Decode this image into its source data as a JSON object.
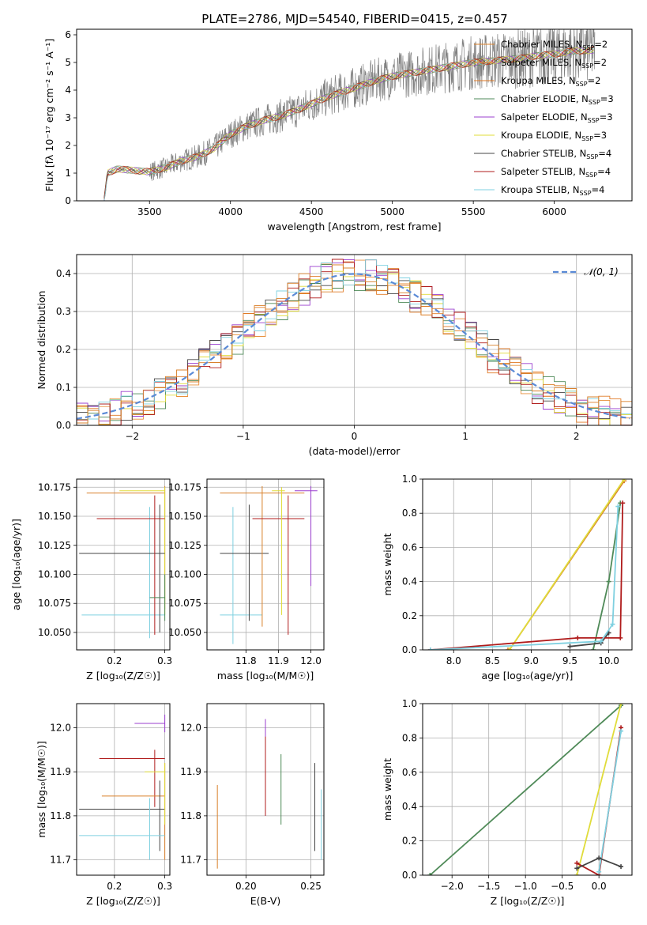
{
  "figure_title": "PLATE=2786, MJD=54540, FIBERID=0415, z=0.457",
  "series_colors": [
    "#d9802b",
    "#e8903c",
    "#e07a25",
    "#4f8a58",
    "#9b3fcf",
    "#e0dc3a",
    "#444444",
    "#b01c1c",
    "#7fd0e0"
  ],
  "chart_data": [
    {
      "id": "spectrum",
      "type": "line",
      "title": "PLATE=2786, MJD=54540, FIBERID=0415, z=0.457",
      "xlabel": "wavelength [Angstrom, rest frame]",
      "ylabel": "Flux [fλ 10⁻¹⁷ erg cm⁻² s⁻¹ A⁻¹]",
      "xlim": [
        3050,
        6480
      ],
      "ylim": [
        0,
        6.2
      ],
      "xticks": [
        3500,
        4000,
        4500,
        5000,
        5500,
        6000
      ],
      "yticks": [
        0,
        1,
        2,
        3,
        4,
        5,
        6
      ],
      "grid": false,
      "legend_position": "top-right",
      "legend": [
        "Chabrier MILES, N_SSP=2",
        "Salpeter MILES, N_SSP=2",
        "Kroupa MILES, N_SSP=2",
        "Chabrier ELODIE, N_SSP=3",
        "Salpeter ELODIE, N_SSP=3",
        "Kroupa ELODIE, N_SSP=3",
        "Chabrier STELIB, N_SSP=4",
        "Salpeter STELIB, N_SSP=4",
        "Kroupa STELIB, N_SSP=4"
      ],
      "continuum_points": [
        [
          3220,
          0
        ],
        [
          3240,
          1.0
        ],
        [
          3300,
          1.15
        ],
        [
          3400,
          1.1
        ],
        [
          3500,
          1.05
        ],
        [
          3600,
          1.2
        ],
        [
          3700,
          1.45
        ],
        [
          3800,
          1.6
        ],
        [
          3900,
          1.9
        ],
        [
          4000,
          2.4
        ],
        [
          4100,
          2.7
        ],
        [
          4200,
          2.9
        ],
        [
          4300,
          3.05
        ],
        [
          4400,
          3.25
        ],
        [
          4500,
          3.5
        ],
        [
          4600,
          3.75
        ],
        [
          4700,
          3.95
        ],
        [
          4800,
          4.15
        ],
        [
          4900,
          4.35
        ],
        [
          5000,
          4.5
        ],
        [
          5100,
          4.6
        ],
        [
          5200,
          4.7
        ],
        [
          5300,
          4.8
        ],
        [
          5400,
          4.9
        ],
        [
          5500,
          5.0
        ],
        [
          5600,
          5.05
        ],
        [
          5700,
          5.1
        ],
        [
          5800,
          5.15
        ],
        [
          5900,
          5.25
        ],
        [
          6000,
          5.3
        ],
        [
          6100,
          5.4
        ],
        [
          6250,
          5.45
        ]
      ]
    },
    {
      "id": "residuals",
      "type": "line",
      "xlabel": "(data-model)/error",
      "ylabel": "Normed distribution",
      "xlim": [
        -2.5,
        2.5
      ],
      "ylim": [
        0,
        0.45
      ],
      "xticks": [
        -2,
        -1,
        0,
        1,
        2
      ],
      "yticks": [
        0.0,
        0.1,
        0.2,
        0.3,
        0.4
      ],
      "grid": true,
      "legend_position": "top-right",
      "legend": [
        "𝒩(0, 1)"
      ],
      "normal_mean": 0,
      "normal_sigma": 1
    },
    {
      "id": "age-vs-Z",
      "type": "scatter",
      "xlabel": "Z [log₁₀(Z/Z☉)]",
      "ylabel": "age  [log₁₀(age/yr)]",
      "xlim": [
        0.125,
        0.31
      ],
      "ylim": [
        10.035,
        10.182
      ],
      "xticks": [
        0.2,
        0.3
      ],
      "yticks": [
        10.05,
        10.075,
        10.1,
        10.125,
        10.15,
        10.175
      ],
      "grid": true
    },
    {
      "id": "age-vs-mass",
      "type": "scatter",
      "xlabel": "mass [log₁₀(M/M☉)]",
      "ylabel": "",
      "xlim": [
        11.68,
        12.04
      ],
      "ylim": [
        10.035,
        10.182
      ],
      "xticks": [
        11.8,
        11.9,
        12.0
      ],
      "yticks": [
        10.05,
        10.075,
        10.1,
        10.125,
        10.15,
        10.175
      ],
      "grid": true
    },
    {
      "id": "massweight-vs-age",
      "type": "line",
      "xlabel": "age  [log₁₀(age/yr)]",
      "ylabel": "mass weight",
      "xlim": [
        7.6,
        10.3
      ],
      "ylim": [
        0,
        1
      ],
      "xticks": [
        8.0,
        8.5,
        9.0,
        9.5,
        10.0
      ],
      "yticks": [
        0.0,
        0.2,
        0.4,
        0.6,
        0.8,
        1.0
      ],
      "grid": true
    },
    {
      "id": "mass-vs-Z",
      "type": "scatter",
      "xlabel": "Z [log₁₀(Z/Z☉)]",
      "ylabel": "mass [log₁₀(M/M☉)]",
      "xlim": [
        0.125,
        0.31
      ],
      "ylim": [
        11.665,
        12.055
      ],
      "xticks": [
        0.2,
        0.3
      ],
      "yticks": [
        11.7,
        11.8,
        11.9,
        12.0
      ],
      "grid": true
    },
    {
      "id": "mass-vs-EBV",
      "type": "scatter",
      "xlabel": "E(B-V)",
      "ylabel": "",
      "xlim": [
        0.17,
        0.26
      ],
      "ylim": [
        11.665,
        12.055
      ],
      "xticks": [
        0.2,
        0.25
      ],
      "yticks": [
        11.7,
        11.8,
        11.9,
        12.0
      ],
      "grid": true
    },
    {
      "id": "massweight-vs-Z",
      "type": "line",
      "xlabel": "Z [log₁₀(Z/Z☉)]",
      "ylabel": "mass weight",
      "xlim": [
        -2.4,
        0.45
      ],
      "ylim": [
        0,
        1
      ],
      "xticks": [
        -2.0,
        -1.5,
        -1.0,
        -0.5,
        0.0
      ],
      "yticks": [
        0.0,
        0.2,
        0.4,
        0.6,
        0.8,
        1.0
      ],
      "grid": true
    }
  ],
  "errorbar_data": {
    "age_Z": [
      {
        "c": 0,
        "Z": 0.3,
        "Zlo": 0.145,
        "Zhi": 0.3,
        "age": 10.17,
        "alo": 10.07,
        "ahi": 10.176
      },
      {
        "c": 5,
        "Z": 0.3,
        "Zlo": 0.21,
        "Zhi": 0.3,
        "age": 10.172,
        "alo": 10.065,
        "ahi": 10.175
      },
      {
        "c": 8,
        "Z": 0.27,
        "Zlo": 0.135,
        "Zhi": 0.3,
        "age": 10.065,
        "alo": 10.045,
        "ahi": 10.158
      },
      {
        "c": 6,
        "Z": 0.29,
        "Zlo": 0.13,
        "Zhi": 0.3,
        "age": 10.118,
        "alo": 10.05,
        "ahi": 10.16
      },
      {
        "c": 7,
        "Z": 0.28,
        "Zlo": 0.165,
        "Zhi": 0.3,
        "age": 10.148,
        "alo": 10.048,
        "ahi": 10.168
      },
      {
        "c": 3,
        "Z": 0.3,
        "Zlo": 0.27,
        "Zhi": 0.3,
        "age": 10.08,
        "alo": 10.06,
        "ahi": 10.1
      }
    ],
    "age_mass": [
      {
        "c": 8,
        "m": 11.76,
        "mlo": 11.72,
        "mhi": 11.85,
        "age": 10.065,
        "alo": 10.04,
        "ahi": 10.158
      },
      {
        "c": 6,
        "m": 11.81,
        "mlo": 11.72,
        "mhi": 11.87,
        "age": 10.118,
        "alo": 10.06,
        "ahi": 10.16
      },
      {
        "c": 0,
        "m": 11.85,
        "mlo": 11.72,
        "mhi": 11.98,
        "age": 10.17,
        "alo": 10.055,
        "ahi": 10.176
      },
      {
        "c": 7,
        "m": 11.93,
        "mlo": 11.82,
        "mhi": 11.98,
        "age": 10.148,
        "alo": 10.048,
        "ahi": 10.168
      },
      {
        "c": 4,
        "m": 12.0,
        "mlo": 11.95,
        "mhi": 12.02,
        "age": 10.172,
        "alo": 10.09,
        "ahi": 10.176
      },
      {
        "c": 5,
        "m": 11.91,
        "mlo": 11.88,
        "mhi": 11.92,
        "age": 10.172,
        "alo": 10.065,
        "ahi": 10.175
      }
    ],
    "mass_Z": [
      {
        "c": 4,
        "Z": 0.3,
        "Zlo": 0.24,
        "Zhi": 0.3,
        "m": 12.01,
        "mlo": 11.99,
        "mhi": 12.03
      },
      {
        "c": 7,
        "Z": 0.28,
        "Zlo": 0.17,
        "Zhi": 0.3,
        "m": 11.93,
        "mlo": 11.82,
        "mhi": 11.95
      },
      {
        "c": 0,
        "Z": 0.3,
        "Zlo": 0.175,
        "Zhi": 0.3,
        "m": 11.845,
        "mlo": 11.7,
        "mhi": 11.92
      },
      {
        "c": 6,
        "Z": 0.29,
        "Zlo": 0.13,
        "Zhi": 0.3,
        "m": 11.815,
        "mlo": 11.72,
        "mhi": 11.88
      },
      {
        "c": 8,
        "Z": 0.27,
        "Zlo": 0.13,
        "Zhi": 0.3,
        "m": 11.755,
        "mlo": 11.7,
        "mhi": 11.84
      },
      {
        "c": 5,
        "Z": 0.3,
        "Zlo": 0.26,
        "Zhi": 0.3,
        "m": 11.9,
        "mlo": 11.78,
        "mhi": 11.92
      }
    ],
    "mass_EBV": [
      {
        "c": 0,
        "e": 0.178,
        "mlo": 11.68,
        "mhi": 11.87
      },
      {
        "c": 4,
        "e": 0.215,
        "mlo": 11.8,
        "mhi": 12.02
      },
      {
        "c": 7,
        "e": 0.215,
        "mlo": 11.8,
        "mhi": 11.98
      },
      {
        "c": 3,
        "e": 0.227,
        "mlo": 11.78,
        "mhi": 11.94
      },
      {
        "c": 6,
        "e": 0.253,
        "mlo": 11.72,
        "mhi": 11.92
      },
      {
        "c": 8,
        "e": 0.258,
        "mlo": 11.7,
        "mhi": 11.86
      }
    ]
  },
  "weight_lines_age": [
    {
      "c": 0,
      "pts": [
        [
          8.7,
          0.0
        ],
        [
          8.72,
          0.0
        ],
        [
          10.2,
          0.99
        ]
      ]
    },
    {
      "c": 5,
      "pts": [
        [
          8.72,
          0.0
        ],
        [
          10.2,
          1.0
        ]
      ]
    },
    {
      "c": 3,
      "pts": [
        [
          9.8,
          0.0
        ],
        [
          10.0,
          0.4
        ],
        [
          10.15,
          0.86
        ]
      ]
    },
    {
      "c": 6,
      "pts": [
        [
          9.5,
          0.02
        ],
        [
          9.9,
          0.04
        ],
        [
          10.0,
          0.1
        ]
      ]
    },
    {
      "c": 7,
      "pts": [
        [
          7.7,
          0.0
        ],
        [
          9.6,
          0.07
        ],
        [
          10.15,
          0.07
        ],
        [
          10.18,
          0.86
        ]
      ]
    },
    {
      "c": 8,
      "pts": [
        [
          7.7,
          0.0
        ],
        [
          9.9,
          0.05
        ],
        [
          10.05,
          0.15
        ],
        [
          10.12,
          0.84
        ]
      ]
    }
  ],
  "weight_lines_Z": [
    {
      "c": 3,
      "pts": [
        [
          -2.3,
          0.0
        ],
        [
          0.3,
          0.99
        ]
      ]
    },
    {
      "c": 5,
      "pts": [
        [
          -0.3,
          0.0
        ],
        [
          0.3,
          1.0
        ]
      ]
    },
    {
      "c": 7,
      "pts": [
        [
          -0.3,
          0.07
        ],
        [
          0.0,
          0.0
        ],
        [
          0.3,
          0.86
        ]
      ]
    },
    {
      "c": 8,
      "pts": [
        [
          0.0,
          0.02
        ],
        [
          0.3,
          0.84
        ]
      ]
    },
    {
      "c": 6,
      "pts": [
        [
          -0.3,
          0.04
        ],
        [
          0.0,
          0.1
        ],
        [
          0.3,
          0.05
        ]
      ]
    }
  ]
}
